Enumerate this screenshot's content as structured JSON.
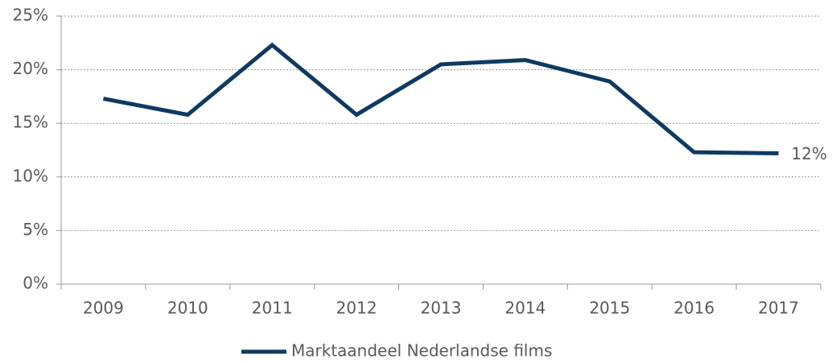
{
  "chart_data": {
    "type": "line",
    "categories": [
      "2009",
      "2010",
      "2011",
      "2012",
      "2013",
      "2014",
      "2015",
      "2016",
      "2017"
    ],
    "series": [
      {
        "name": "Marktaandeel Nederlandse films",
        "color": "#0e3a62",
        "values": [
          17.3,
          15.8,
          22.3,
          15.8,
          20.5,
          20.9,
          18.9,
          12.3,
          12.2
        ],
        "value_labels": [
          null,
          null,
          null,
          null,
          null,
          null,
          null,
          null,
          "12%"
        ]
      }
    ],
    "ylim": [
      0,
      25
    ],
    "yticks": [
      {
        "value": 0,
        "label": "0%"
      },
      {
        "value": 5,
        "label": "5%"
      },
      {
        "value": 10,
        "label": "10%"
      },
      {
        "value": 15,
        "label": "15%"
      },
      {
        "value": 20,
        "label": "20%"
      },
      {
        "value": 25,
        "label": "25%"
      }
    ],
    "grid": true,
    "legend": "bottom"
  }
}
